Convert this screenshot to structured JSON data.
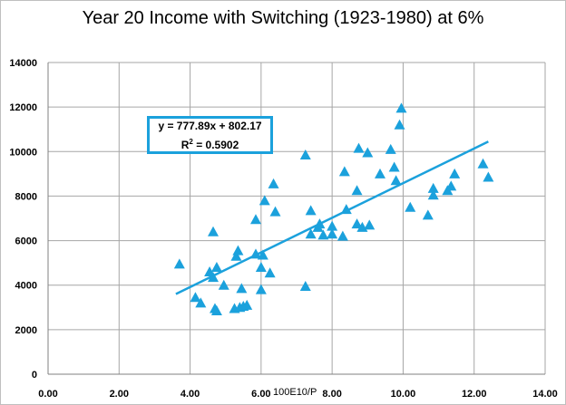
{
  "chart_data": {
    "type": "scatter",
    "title": "Year 20 Income with Switching (1923-1980) at 6%",
    "xlabel": "100E10/P",
    "ylabel": "",
    "xlim": [
      0,
      14
    ],
    "ylim": [
      0,
      14000
    ],
    "x_ticks": [
      "0.00",
      "2.00",
      "4.00",
      "6.00",
      "8.00",
      "10.00",
      "12.00",
      "14.00"
    ],
    "y_ticks": [
      "0",
      "2000",
      "4000",
      "6000",
      "8000",
      "10000",
      "12000",
      "14000"
    ],
    "grid": true,
    "marker_color": "#1ba1dc",
    "trendline": {
      "slope": 777.89,
      "intercept": 802.17,
      "x_range": [
        3.6,
        12.4
      ]
    },
    "equation": "y = 777.89x + 802.17",
    "r_squared_prefix": "R",
    "r_squared_sup": "2",
    "r_squared_value": " = 0.5902",
    "points": [
      [
        3.7,
        4950
      ],
      [
        4.15,
        3450
      ],
      [
        4.3,
        3200
      ],
      [
        4.55,
        4600
      ],
      [
        4.65,
        6400
      ],
      [
        4.65,
        4350
      ],
      [
        4.7,
        2950
      ],
      [
        4.75,
        4800
      ],
      [
        4.75,
        2850
      ],
      [
        4.95,
        4000
      ],
      [
        5.25,
        2950
      ],
      [
        5.3,
        5300
      ],
      [
        5.35,
        5550
      ],
      [
        5.4,
        3000
      ],
      [
        5.45,
        3850
      ],
      [
        5.5,
        3050
      ],
      [
        5.6,
        3100
      ],
      [
        5.85,
        5400
      ],
      [
        5.85,
        6950
      ],
      [
        6.0,
        3800
      ],
      [
        6.0,
        4800
      ],
      [
        6.05,
        5350
      ],
      [
        6.1,
        7800
      ],
      [
        6.25,
        4550
      ],
      [
        6.35,
        8550
      ],
      [
        6.4,
        7300
      ],
      [
        7.25,
        9850
      ],
      [
        7.25,
        3950
      ],
      [
        7.4,
        6300
      ],
      [
        7.4,
        7350
      ],
      [
        7.6,
        6600
      ],
      [
        7.65,
        6750
      ],
      [
        7.75,
        6250
      ],
      [
        8.0,
        6650
      ],
      [
        8.0,
        6300
      ],
      [
        8.35,
        9100
      ],
      [
        8.4,
        7400
      ],
      [
        8.3,
        6200
      ],
      [
        8.7,
        6750
      ],
      [
        8.7,
        8250
      ],
      [
        8.75,
        10150
      ],
      [
        8.85,
        6600
      ],
      [
        9.05,
        6700
      ],
      [
        9.0,
        9950
      ],
      [
        9.35,
        9000
      ],
      [
        9.65,
        10100
      ],
      [
        9.75,
        9300
      ],
      [
        9.9,
        11200
      ],
      [
        9.95,
        11950
      ],
      [
        9.8,
        8700
      ],
      [
        10.2,
        7500
      ],
      [
        10.7,
        7150
      ],
      [
        10.85,
        8350
      ],
      [
        10.85,
        8050
      ],
      [
        11.25,
        8250
      ],
      [
        11.35,
        8450
      ],
      [
        11.45,
        9000
      ],
      [
        12.25,
        9450
      ],
      [
        12.4,
        8850
      ]
    ]
  }
}
